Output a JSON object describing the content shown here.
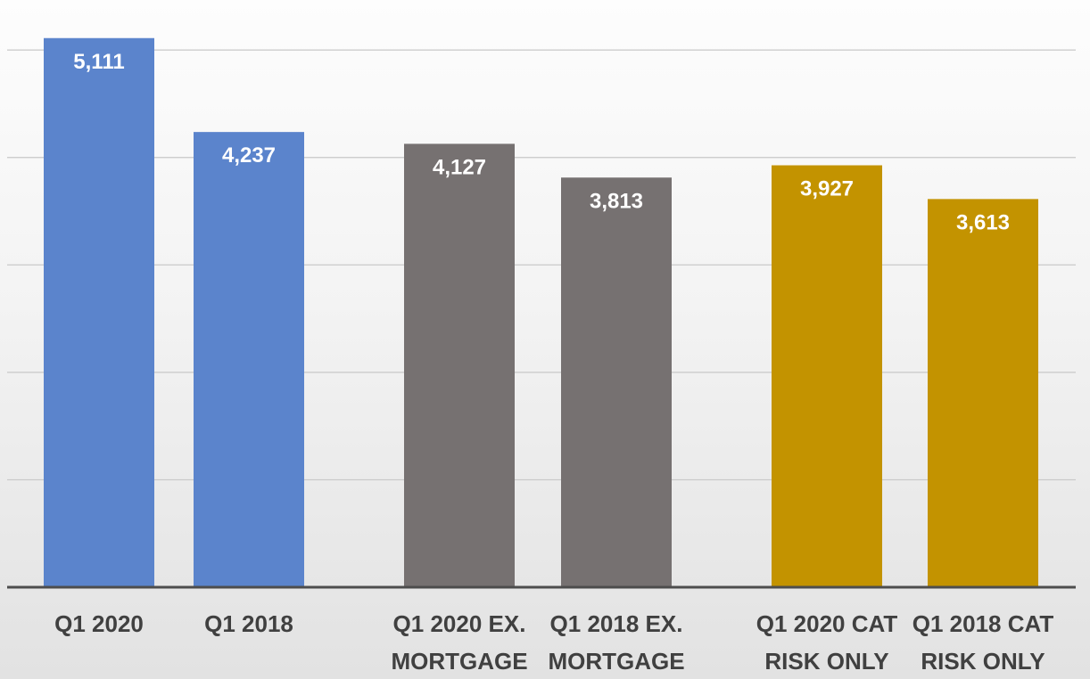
{
  "chart_data": {
    "type": "bar",
    "title": "",
    "xlabel": "",
    "ylabel": "",
    "ylim": [
      0,
      5250
    ],
    "grid": true,
    "legend": "none",
    "categories": [
      [
        "Q1 2020"
      ],
      [
        "Q1 2018"
      ],
      [
        "Q1 2020 EX.",
        "MORTGAGE"
      ],
      [
        "Q1 2018 EX.",
        "MORTGAGE"
      ],
      [
        "Q1 2020 CAT",
        "RISK ONLY"
      ],
      [
        "Q1 2018 CAT",
        "RISK ONLY"
      ]
    ],
    "values": [
      5111,
      4237,
      4127,
      3813,
      3927,
      3613
    ],
    "data_labels": [
      "5,111",
      "4,237",
      "4,127",
      "3,813",
      "3,927",
      "3,613"
    ],
    "colors": [
      "#5b84cc",
      "#5b84cc",
      "#767171",
      "#767171",
      "#c39300",
      "#c39300"
    ]
  }
}
